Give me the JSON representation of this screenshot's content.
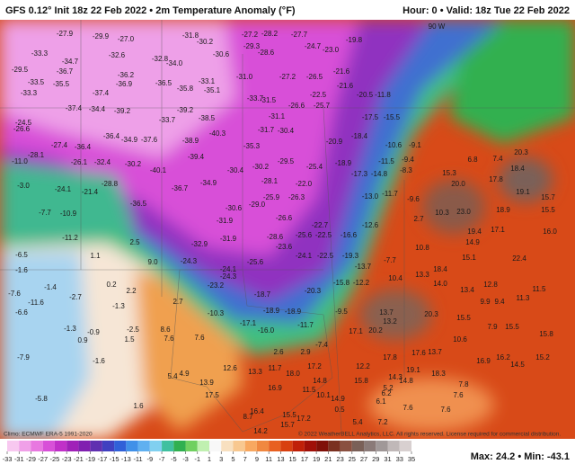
{
  "header": {
    "title": "GFS 0.12° Init 18z 22 Feb 2022 • 2m Temperature Anomaly (°F)",
    "valid": "Hour: 0 • Valid: 18z Tue 22 Feb 2022"
  },
  "map": {
    "meridian": "90 W",
    "labels": [
      "-27.9",
      "-29.9",
      "-27.0",
      "-31.8",
      "-30.2",
      "-27.2",
      "-28.2",
      "-27.7",
      "-33.3",
      "-34.7",
      "-32.6",
      "-32.8",
      "-34.0",
      "-30.6",
      "-29.3",
      "-28.6",
      "-24.7",
      "-23.0",
      "-19.8",
      "-29.5",
      "-36.7",
      "-36.2",
      "-36.9",
      "-36.5",
      "-33.1",
      "-35.8",
      "-35.1",
      "-31.0",
      "-27.2",
      "-26.5",
      "-21.6",
      "-33.5",
      "-35.5",
      "-33.3",
      "-37.4",
      "-21.6",
      "-20.5",
      "-11.8",
      "-33.7",
      "-31.5",
      "-26.6",
      "-22.5",
      "-25.7",
      "-37.4",
      "-34.4",
      "-39.2",
      "-39.2",
      "-33.7",
      "-38.5",
      "-31.1",
      "-17.5",
      "-15.5",
      "-24.5",
      "-26.6",
      "-36.4",
      "-34.9",
      "-37.6",
      "-38.9",
      "-40.3",
      "-31.7",
      "-30.4",
      "-27.4",
      "-36.4",
      "-35.3",
      "-20.9",
      "-18.4",
      "-10.6",
      "-9.1",
      "-28.1",
      "-11.0",
      "-39.4",
      "-29.5",
      "-25.4",
      "-18.9",
      "-11.5",
      "-9.4",
      "-26.1",
      "-32.4",
      "-30.2",
      "-40.1",
      "-30.2",
      "-30.4",
      "-17.3",
      "-14.8",
      "-8.3",
      "6.8",
      "7.4",
      "20.3",
      "15.3",
      "18.4",
      "-3.0",
      "-24.1",
      "-21.4",
      "-28.8",
      "-36.7",
      "-34.9",
      "-28.1",
      "-22.0",
      "20.0",
      "19.1",
      "17.8",
      "15.7",
      "-13.0",
      "-11.7",
      "-9.6",
      "-36.5",
      "-30.6",
      "-29.0",
      "-25.9",
      "-26.3",
      "23.0",
      "18.9",
      "15.5",
      "-7.7",
      "-10.9",
      "-31.9",
      "-26.6",
      "-22.7",
      "-12.6",
      "2.7",
      "10.3",
      "17.1",
      "16.0",
      "-11.2",
      "-31.9",
      "-28.6",
      "-25.6",
      "-22.5",
      "-16.6",
      "19.4",
      "14.9",
      "2.5",
      "-32.9",
      "-6.5",
      "1.1",
      "-23.6",
      "-24.1",
      "-22.5",
      "-19.3",
      "10.8",
      "15.1",
      "22.4",
      "-24.3",
      "9.0",
      "-24.1",
      "-25.6",
      "-13.7",
      "-7.7",
      "18.4",
      "13.3",
      "-1.6",
      "0.2",
      "2.2",
      "-24.3",
      "-23.2",
      "-15.8",
      "-12.2",
      "10.4",
      "14.0",
      "12.8",
      "11.5",
      "-1.4",
      "-2.7",
      "-18.7",
      "-20.3",
      "13.4",
      "-7.6",
      "11.3",
      "-11.6",
      "-1.3",
      "2.7",
      "9.9",
      "9.4",
      "-18.9",
      "-18.9",
      "-10.3",
      "-9.5",
      "13.7",
      "20.3",
      "15.5",
      "-6.6",
      "13.2",
      "-1.3",
      "-0.9",
      "-2.5",
      "8.6",
      "-16.0",
      "-17.1",
      "-11.7",
      "17.1",
      "20.2",
      "7.9",
      "15.5",
      "15.8",
      "0.9",
      "1.5",
      "7.6",
      "7.6",
      "-7.4",
      "10.6",
      "-7.9",
      "-1.6",
      "2.6",
      "2.9",
      "17.8",
      "17.6",
      "13.7",
      "16.9",
      "16.2",
      "14.5",
      "15.2",
      "12.2",
      "19.1",
      "5.4",
      "4.9",
      "12.6",
      "13.3",
      "11.7",
      "18.0",
      "17.2",
      "18.3",
      "14.3",
      "13.9",
      "14.8",
      "15.8",
      "14.8",
      "7.8",
      "16.9",
      "11.5",
      "6.2",
      "17.5",
      "10.1",
      "7.6",
      "-5.8",
      "14.9",
      "6.1",
      "5.2",
      "1.6",
      "16.4",
      "15.5",
      "17.2",
      "0.5",
      "7.6",
      "7.6",
      "8.7",
      "5.4",
      "7.2",
      "15.7",
      "14.2"
    ]
  },
  "colorbar": {
    "ticks": [
      -33,
      -31,
      -29,
      -27,
      -25,
      -23,
      -21,
      -19,
      -17,
      -15,
      -13,
      -11,
      -9,
      -7,
      -5,
      -3,
      -1,
      1,
      3,
      5,
      7,
      9,
      11,
      13,
      15,
      17,
      19,
      21,
      23,
      25,
      27,
      29,
      31,
      33,
      35
    ],
    "colors": [
      "#f8c8f0",
      "#f0a0e8",
      "#e878e0",
      "#d850d8",
      "#c030c8",
      "#a020b8",
      "#8020b0",
      "#6030b0",
      "#4040c0",
      "#3060d8",
      "#4090e8",
      "#60b0f0",
      "#80d0f0",
      "#40c0a0",
      "#30b050",
      "#70d060",
      "#c0f0b0",
      "#f8f8f8",
      "#f8e0c0",
      "#f8c890",
      "#f8a860",
      "#f08840",
      "#e86020",
      "#d84010",
      "#c02008",
      "#a01008",
      "#801008",
      "#7a3020",
      "#8a5040",
      "#7a6058",
      "#8a7a78",
      "#a09898",
      "#c0b8b8",
      "#d8d0d0"
    ]
  },
  "footer": {
    "climo": "Climo: ECMWF ERA-5 1991-2020",
    "copyright": "© 2022 WeatherBELL Analytics, LLC. All rights reserved. License required for commercial distribution.",
    "maxmin": "Max: 24.2 • Min: -43.1"
  }
}
